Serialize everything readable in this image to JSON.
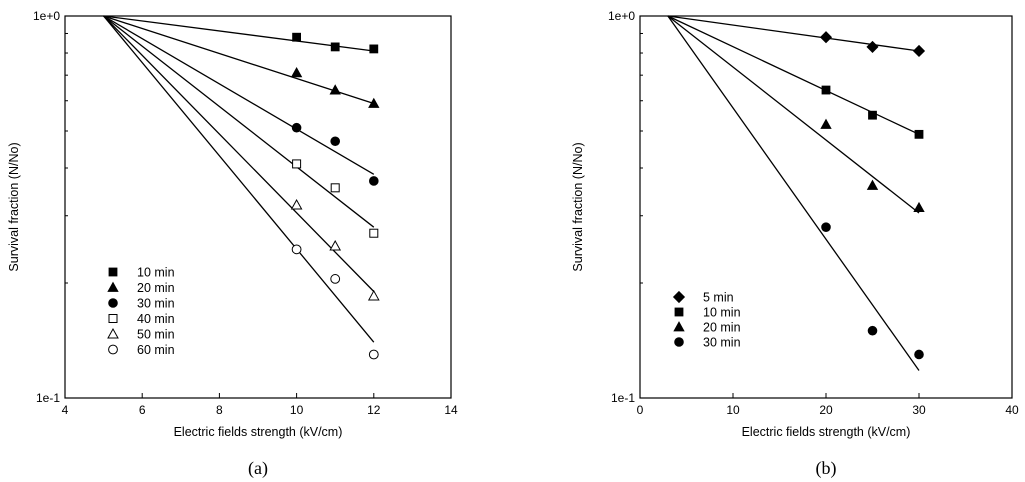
{
  "panels": [
    {
      "caption": "(a)"
    },
    {
      "caption": "(b)"
    }
  ],
  "chart_data": [
    {
      "type": "scatter",
      "yscale": "log",
      "xlabel": "Electric fields strength (kV/cm)",
      "ylabel": "Survival fraction (N/No)",
      "xlim": [
        4,
        14
      ],
      "ylim": [
        0.1,
        1
      ],
      "xticks": [
        4,
        6,
        8,
        10,
        12,
        14
      ],
      "yticks": [
        {
          "value": 1,
          "label": "1e+0"
        },
        {
          "value": 0.1,
          "label": "1e-1"
        }
      ],
      "legend_position": "lower-left",
      "series": [
        {
          "name": "10 min",
          "marker": "square-filled",
          "points": [
            [
              10,
              0.88
            ],
            [
              11,
              0.83
            ],
            [
              12,
              0.82
            ]
          ],
          "fit": [
            [
              5,
              1.0
            ],
            [
              12,
              0.81
            ]
          ]
        },
        {
          "name": "20 min",
          "marker": "triangle-filled",
          "points": [
            [
              10,
              0.71
            ],
            [
              11,
              0.64
            ],
            [
              12,
              0.59
            ]
          ],
          "fit": [
            [
              5,
              1.0
            ],
            [
              12,
              0.59
            ]
          ]
        },
        {
          "name": "30 min",
          "marker": "circle-filled",
          "points": [
            [
              10,
              0.51
            ],
            [
              11,
              0.47
            ],
            [
              12,
              0.37
            ]
          ],
          "fit": [
            [
              5,
              1.0
            ],
            [
              12,
              0.385
            ]
          ]
        },
        {
          "name": "40 min",
          "marker": "square-open",
          "points": [
            [
              10,
              0.41
            ],
            [
              11,
              0.355
            ],
            [
              12,
              0.27
            ]
          ],
          "fit": [
            [
              5,
              1.0
            ],
            [
              12,
              0.28
            ]
          ]
        },
        {
          "name": "50 min",
          "marker": "triangle-open",
          "points": [
            [
              10,
              0.32
            ],
            [
              11,
              0.25
            ],
            [
              12,
              0.185
            ]
          ],
          "fit": [
            [
              5,
              1.0
            ],
            [
              12,
              0.19
            ]
          ]
        },
        {
          "name": "60 min",
          "marker": "circle-open",
          "points": [
            [
              10,
              0.245
            ],
            [
              11,
              0.205
            ],
            [
              12,
              0.13
            ]
          ],
          "fit": [
            [
              5,
              1.0
            ],
            [
              12,
              0.14
            ]
          ]
        }
      ]
    },
    {
      "type": "scatter",
      "yscale": "log",
      "xlabel": "Electric fields strength (kV/cm)",
      "ylabel": "Survival fraction (N/No)",
      "xlim": [
        0,
        40
      ],
      "ylim": [
        0.1,
        1
      ],
      "xticks": [
        0,
        10,
        20,
        30,
        40
      ],
      "yticks": [
        {
          "value": 1,
          "label": "1e+0"
        },
        {
          "value": 0.1,
          "label": "1e-1"
        }
      ],
      "legend_position": "lower-left",
      "series": [
        {
          "name": "5 min",
          "marker": "diamond-filled",
          "points": [
            [
              20,
              0.88
            ],
            [
              25,
              0.83
            ],
            [
              30,
              0.81
            ]
          ],
          "fit": [
            [
              3,
              1.0
            ],
            [
              30,
              0.81
            ]
          ]
        },
        {
          "name": "10 min",
          "marker": "square-filled",
          "points": [
            [
              20,
              0.64
            ],
            [
              25,
              0.55
            ],
            [
              30,
              0.49
            ]
          ],
          "fit": [
            [
              3,
              1.0
            ],
            [
              30,
              0.49
            ]
          ]
        },
        {
          "name": "20 min",
          "marker": "triangle-filled",
          "points": [
            [
              20,
              0.52
            ],
            [
              25,
              0.36
            ],
            [
              30,
              0.315
            ]
          ],
          "fit": [
            [
              3,
              1.0
            ],
            [
              30,
              0.305
            ]
          ]
        },
        {
          "name": "30 min",
          "marker": "circle-filled",
          "points": [
            [
              20,
              0.28
            ],
            [
              25,
              0.15
            ],
            [
              30,
              0.13
            ]
          ],
          "fit": [
            [
              3,
              1.0
            ],
            [
              30,
              0.118
            ]
          ]
        }
      ]
    }
  ]
}
